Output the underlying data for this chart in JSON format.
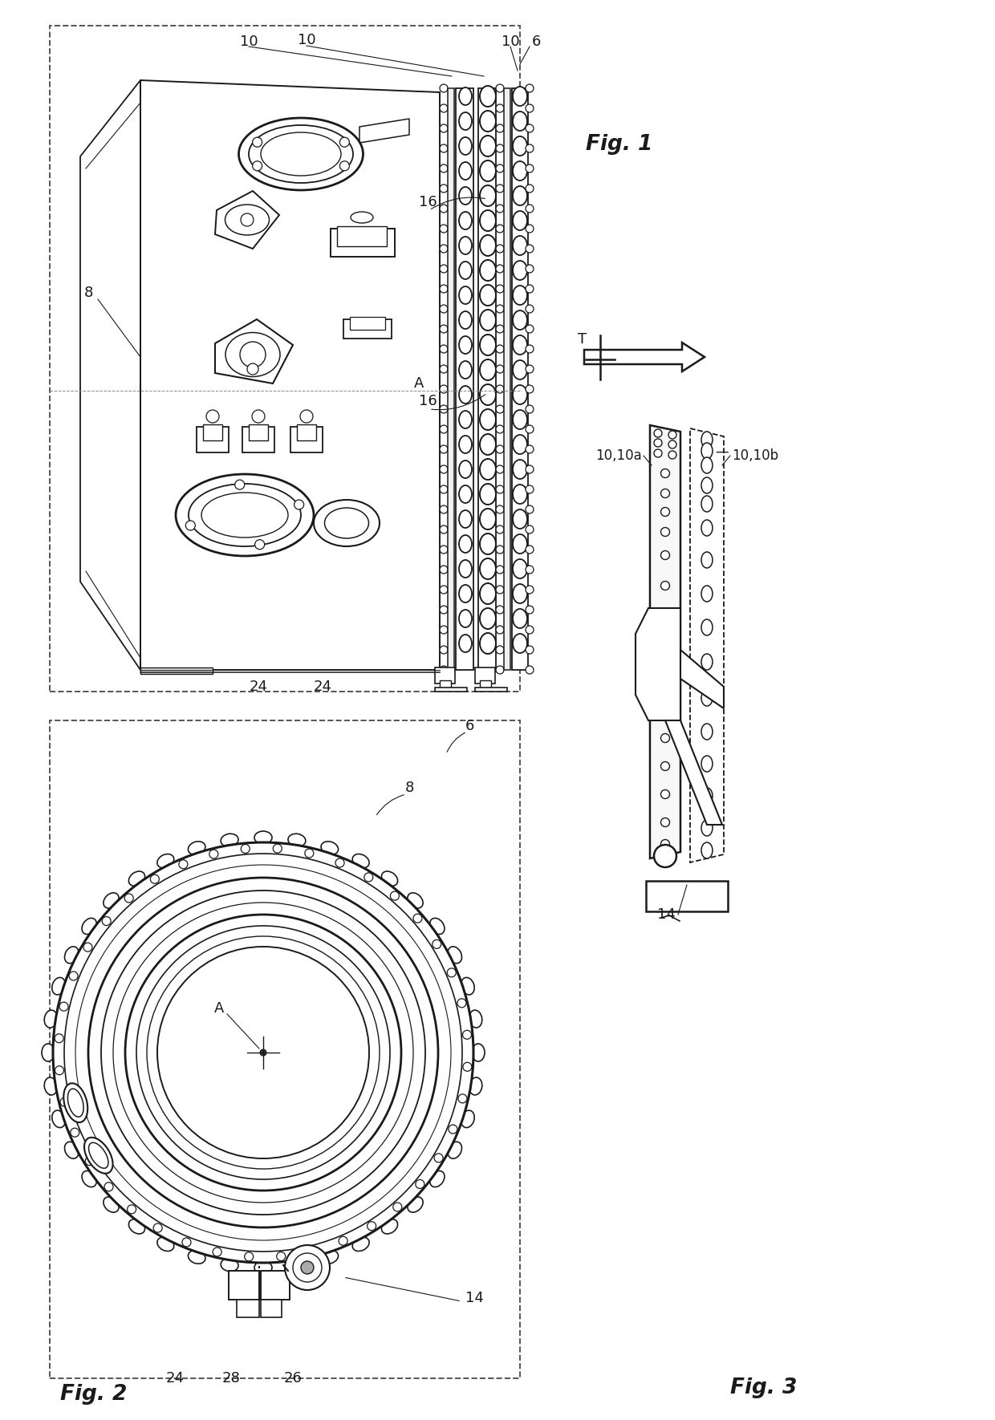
{
  "bg": "#ffffff",
  "lc": "#1a1a1a",
  "fs_label": 13,
  "fs_fig": 19,
  "fig1_title": "Fig. 1",
  "fig2_title": "Fig. 2",
  "fig3_title": "Fig. 3"
}
